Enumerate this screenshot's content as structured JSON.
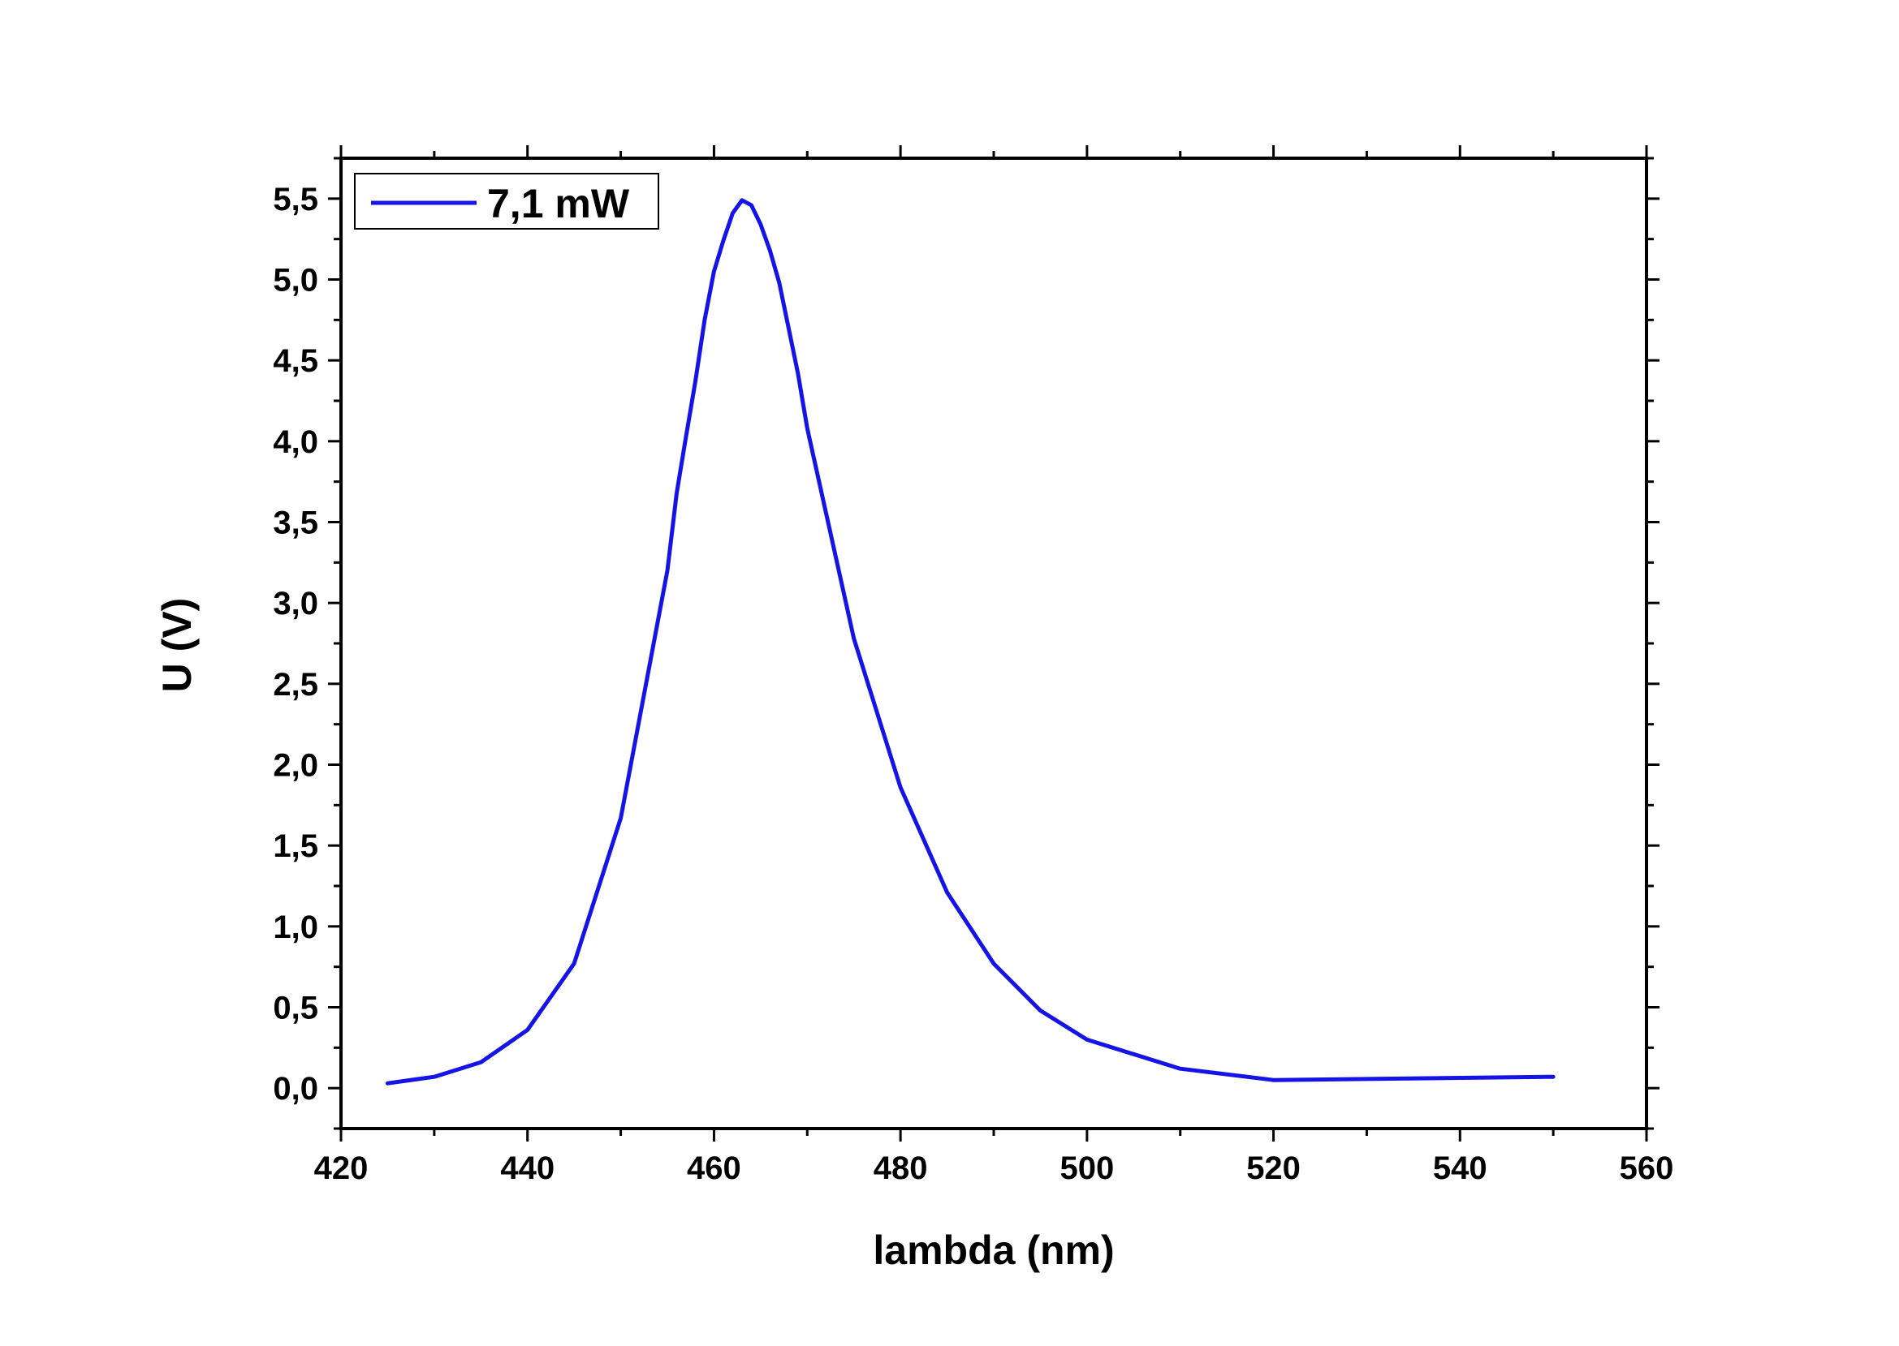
{
  "chart_data": {
    "type": "line",
    "title": "",
    "xlabel": "lambda (nm)",
    "ylabel": "U (V)",
    "xlim": [
      420,
      560
    ],
    "ylim": [
      -0.25,
      5.75
    ],
    "xticks": [
      420,
      440,
      460,
      480,
      500,
      520,
      540,
      560
    ],
    "xtick_labels": [
      "420",
      "440",
      "460",
      "480",
      "500",
      "520",
      "540",
      "560"
    ],
    "yticks": [
      0.0,
      0.5,
      1.0,
      1.5,
      2.0,
      2.5,
      3.0,
      3.5,
      4.0,
      4.5,
      5.0,
      5.5
    ],
    "ytick_labels": [
      "0,0",
      "0,5",
      "1,0",
      "1,5",
      "2,0",
      "2,5",
      "3,0",
      "3,5",
      "4,0",
      "4,5",
      "5,0",
      "5,5"
    ],
    "grid": false,
    "legend_position": "top-left",
    "series": [
      {
        "name": "7,1 mW",
        "color": "#1414e6",
        "x": [
          425,
          430,
          435,
          440,
          445,
          450,
          455,
          456,
          457,
          458,
          459,
          460,
          461,
          462,
          463,
          464,
          465,
          466,
          467,
          468,
          469,
          470,
          475,
          480,
          485,
          490,
          495,
          500,
          510,
          520,
          550
        ],
        "y": [
          0.03,
          0.07,
          0.16,
          0.36,
          0.77,
          1.67,
          3.2,
          3.68,
          4.03,
          4.37,
          4.75,
          5.05,
          5.24,
          5.41,
          5.49,
          5.46,
          5.34,
          5.18,
          4.98,
          4.7,
          4.42,
          4.08,
          2.78,
          1.86,
          1.21,
          0.77,
          0.48,
          0.3,
          0.12,
          0.05,
          0.07
        ]
      }
    ]
  }
}
